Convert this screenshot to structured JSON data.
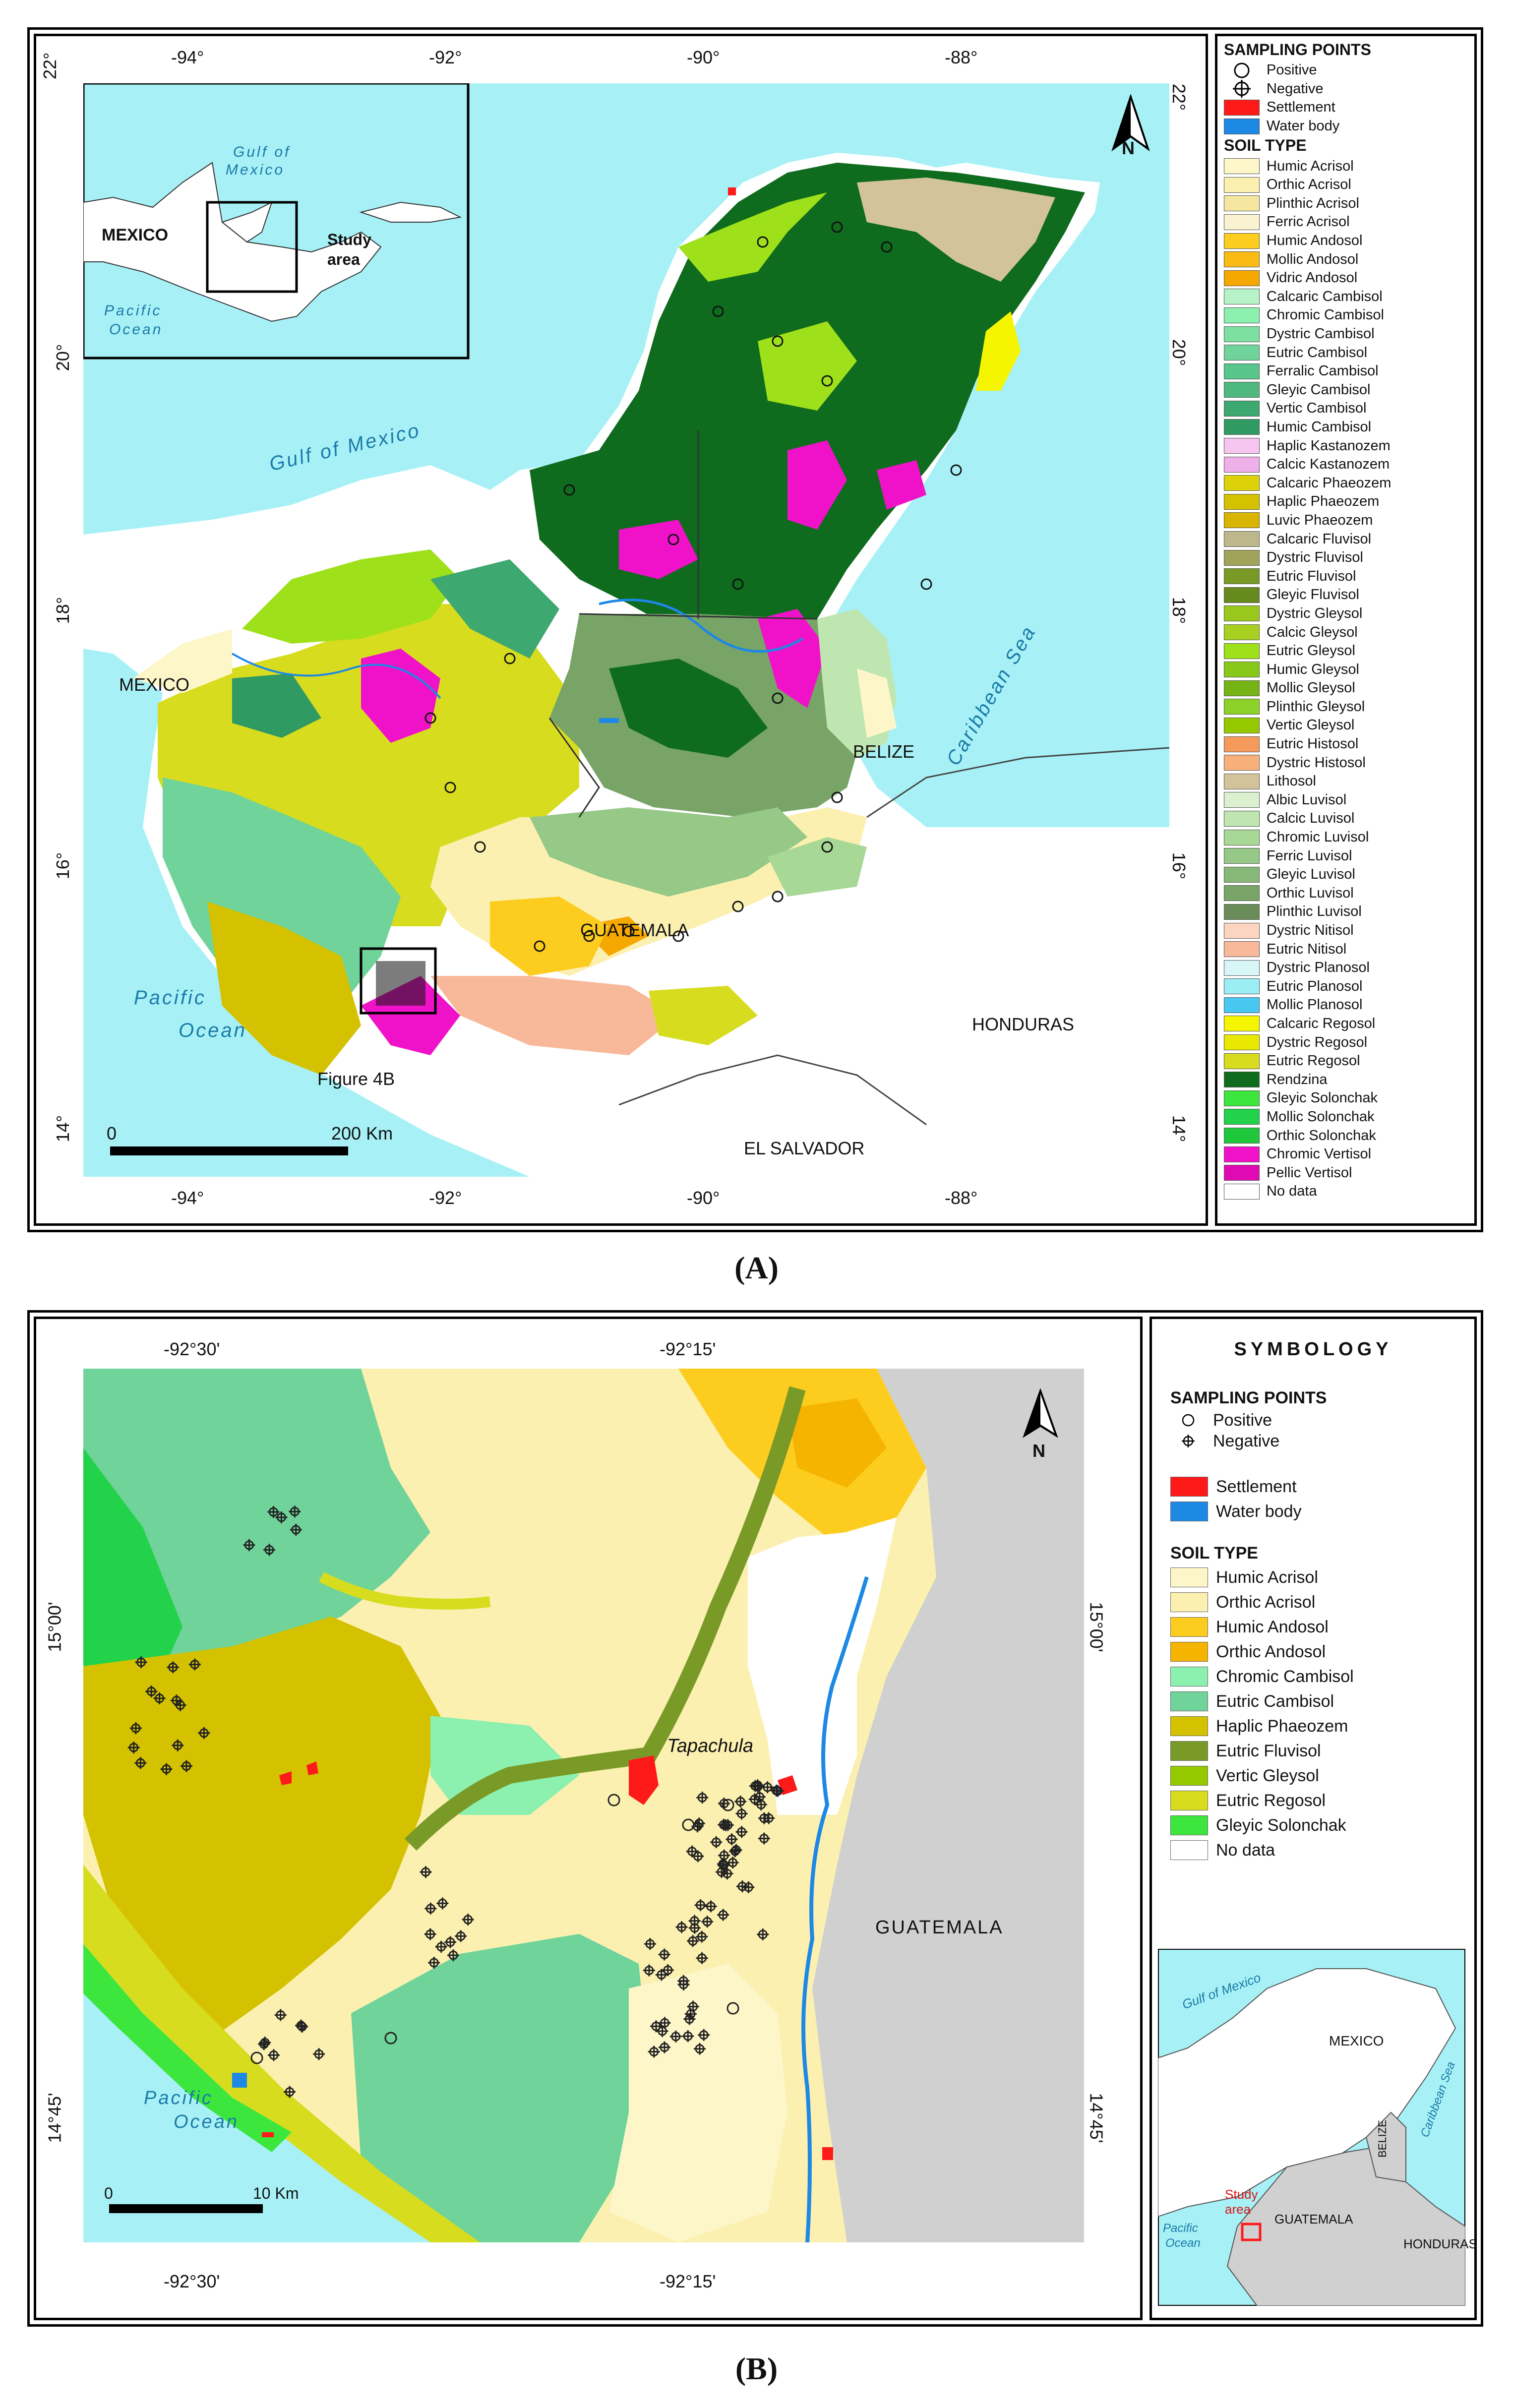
{
  "panel_a": {
    "label": "(A)",
    "lon_ticks": [
      "-94°",
      "-92°",
      "-90°",
      "-88°"
    ],
    "lat_ticks_left": [
      "22°",
      "20°",
      "18°",
      "16°",
      "14°"
    ],
    "lat_ticks_right": [
      "22°",
      "20°",
      "18°",
      "16°",
      "14°"
    ],
    "places": {
      "mexico_main": "MEXICO",
      "belize": "BELIZE",
      "guatemala": "GUATEMALA",
      "honduras": "HONDURAS",
      "el_salvador": "EL SALVADOR",
      "gulf": "Gulf of Mexico",
      "caribbean": "Caribbean Sea",
      "pacific_1": "Pacific",
      "pacific_2": "Ocean",
      "figure_ref": "Figure 4B"
    },
    "inset": {
      "mexico": "MEXICO",
      "gulf_1": "Gulf of",
      "gulf_2": "Mexico",
      "pacific_1": "Pacific",
      "pacific_2": "Ocean",
      "study_1": "Study",
      "study_2": "area"
    },
    "scale": {
      "start": "0",
      "end": "200 Km"
    },
    "north": "N",
    "legend": {
      "sampling_title": "SAMPLING POINTS",
      "positive": "Positive",
      "negative": "Negative",
      "settlement": "Settlement",
      "water": "Water body",
      "soil_title": "SOIL TYPE",
      "settlement_color": "#ff1a1a",
      "water_color": "#1e88e5",
      "soils": [
        {
          "name": "Humic Acrisol",
          "color": "#fdf6c8"
        },
        {
          "name": "Orthic Acrisol",
          "color": "#fbf0b0"
        },
        {
          "name": "Plinthic Acrisol",
          "color": "#f5e6a0"
        },
        {
          "name": "Ferric Acrisol",
          "color": "#faf3d2"
        },
        {
          "name": "Humic Andosol",
          "color": "#fccc1e"
        },
        {
          "name": "Mollic Andosol",
          "color": "#f9bb14"
        },
        {
          "name": "Vidric Andosol",
          "color": "#f5a800"
        },
        {
          "name": "Calcaric Cambisol",
          "color": "#b6f3c6"
        },
        {
          "name": "Chromic Cambisol",
          "color": "#8cf0ae"
        },
        {
          "name": "Dystric Cambisol",
          "color": "#7ee0a0"
        },
        {
          "name": "Eutric Cambisol",
          "color": "#6fd39a"
        },
        {
          "name": "Ferralic Cambisol",
          "color": "#58c58b"
        },
        {
          "name": "Gleyic Cambisol",
          "color": "#4eb87e"
        },
        {
          "name": "Vertic Cambisol",
          "color": "#3da86f"
        },
        {
          "name": "Humic Cambisol",
          "color": "#2f9a62"
        },
        {
          "name": "Haplic Kastanozem",
          "color": "#f7c6f0"
        },
        {
          "name": "Calcic Kastanozem",
          "color": "#efb0ea"
        },
        {
          "name": "Calcaric Phaeozem",
          "color": "#ddd20a"
        },
        {
          "name": "Haplic Phaeozem",
          "color": "#d4c200"
        },
        {
          "name": "Luvic Phaeozem",
          "color": "#d9b400"
        },
        {
          "name": "Calcaric Fluvisol",
          "color": "#bdb88c"
        },
        {
          "name": "Dystric Fluvisol",
          "color": "#a1a35a"
        },
        {
          "name": "Eutric Fluvisol",
          "color": "#7a9a28"
        },
        {
          "name": "Gleyic Fluvisol",
          "color": "#668a1e"
        },
        {
          "name": "Dystric Gleysol",
          "color": "#9ac81c"
        },
        {
          "name": "Calcic Gleysol",
          "color": "#a8d020"
        },
        {
          "name": "Eutric Gleysol",
          "color": "#9ee01a"
        },
        {
          "name": "Humic Gleysol",
          "color": "#88c818"
        },
        {
          "name": "Mollic Gleysol",
          "color": "#76b415"
        },
        {
          "name": "Plinthic Gleysol",
          "color": "#8cd228"
        },
        {
          "name": "Vertic Gleysol",
          "color": "#96c800"
        },
        {
          "name": "Eutric Histosol",
          "color": "#f59a5a"
        },
        {
          "name": "Dystric Histosol",
          "color": "#f7b07a"
        },
        {
          "name": "Lithosol",
          "color": "#d2c39a"
        },
        {
          "name": "Albic Luvisol",
          "color": "#dbf0cf"
        },
        {
          "name": "Calcic Luvisol",
          "color": "#bfe6b0"
        },
        {
          "name": "Chromic Luvisol",
          "color": "#a8d896"
        },
        {
          "name": "Ferric Luvisol",
          "color": "#96c887"
        },
        {
          "name": "Gleyic Luvisol",
          "color": "#86b878"
        },
        {
          "name": "Orthic Luvisol",
          "color": "#78a468"
        },
        {
          "name": "Plinthic Luvisol",
          "color": "#6a8c58"
        },
        {
          "name": "Dystric Nitisol",
          "color": "#fcd5c0"
        },
        {
          "name": "Eutric Nitisol",
          "color": "#f8b89a"
        },
        {
          "name": "Dystric Planosol",
          "color": "#d8f6f8"
        },
        {
          "name": "Eutric Planosol",
          "color": "#9aeef4"
        },
        {
          "name": "Mollic Planosol",
          "color": "#48c8f0"
        },
        {
          "name": "Calcaric Regosol",
          "color": "#f5f500"
        },
        {
          "name": "Dystric Regosol",
          "color": "#e8e800"
        },
        {
          "name": "Eutric Regosol",
          "color": "#d8dc1e"
        },
        {
          "name": "Rendzina",
          "color": "#0f6b1e"
        },
        {
          "name": "Gleyic Solonchak",
          "color": "#3ce63c"
        },
        {
          "name": "Mollic Solonchak",
          "color": "#22d24a"
        },
        {
          "name": "Orthic Solonchak",
          "color": "#1ec83a"
        },
        {
          "name": "Chromic Vertisol",
          "color": "#f012c8"
        },
        {
          "name": "Pellic Vertisol",
          "color": "#e00ab4"
        },
        {
          "name": "No data",
          "color": "#ffffff"
        }
      ]
    }
  },
  "panel_b": {
    "label": "(B)",
    "lon_ticks_top": [
      "-92°30'",
      "-92°15'"
    ],
    "lon_ticks_bottom": [
      "-92°30'",
      "-92°15'"
    ],
    "lat_ticks_left": [
      "15°00'",
      "14°45'"
    ],
    "lat_ticks_right": [
      "15°00'",
      "14°45'"
    ],
    "city": "Tapachula",
    "guatemala": "GUATEMALA",
    "pacific_1": "Pacific",
    "pacific_2": "Ocean",
    "scale": {
      "start": "0",
      "end": "10 Km"
    },
    "north": "N",
    "legend": {
      "title": "SYMBOLOGY",
      "sampling_title": "SAMPLING POINTS",
      "positive": "Positive",
      "negative": "Negative",
      "settlement": "Settlement",
      "water": "Water body",
      "soil_title": "SOIL TYPE",
      "soils": [
        {
          "name": "Humic Acrisol",
          "color": "#fdf6c8"
        },
        {
          "name": "Orthic Acrisol",
          "color": "#fbf0b0"
        },
        {
          "name": "Humic Andosol",
          "color": "#fccc1e"
        },
        {
          "name": "Orthic Andosol",
          "color": "#f5b400"
        },
        {
          "name": "Chromic Cambisol",
          "color": "#8cf0ae"
        },
        {
          "name": "Eutric Cambisol",
          "color": "#6fd39a"
        },
        {
          "name": "Haplic Phaeozem",
          "color": "#d4c200"
        },
        {
          "name": "Eutric Fluvisol",
          "color": "#7a9a28"
        },
        {
          "name": "Vertic Gleysol",
          "color": "#96c800"
        },
        {
          "name": "Eutric Regosol",
          "color": "#d8dc1e"
        },
        {
          "name": "Gleyic Solonchak",
          "color": "#3ce63c"
        },
        {
          "name": "No data",
          "color": "#ffffff"
        }
      ]
    },
    "inset": {
      "gulf": "Gulf of Mexico",
      "mexico": "MEXICO",
      "belize": "BELIZE",
      "caribbean": "Caribbean Sea",
      "guatemala": "GUATEMALA",
      "honduras": "HONDURAS",
      "pacific_1": "Pacific",
      "pacific_2": "Ocean",
      "study_1": "Study",
      "study_2": "area"
    }
  }
}
